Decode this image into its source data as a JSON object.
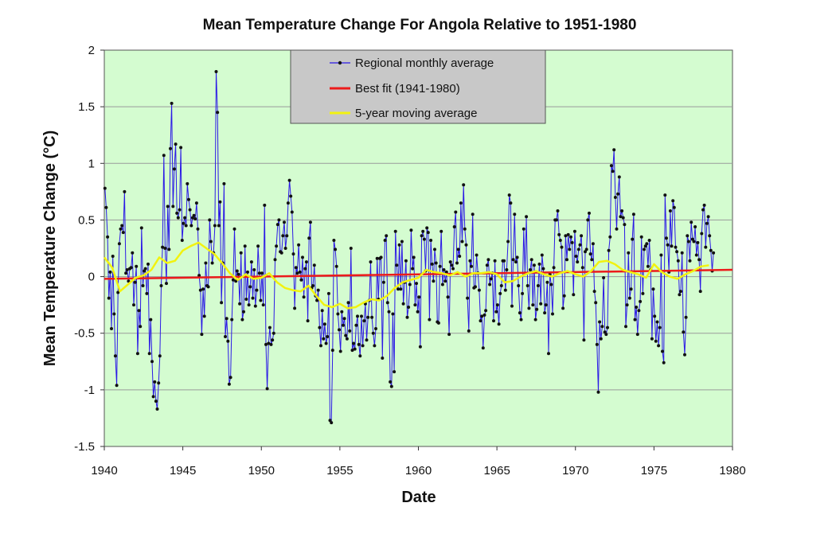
{
  "chart_data": {
    "type": "line",
    "title": "Mean Temperature Change For Angola Relative to 1951-1980",
    "xlabel": "Date",
    "ylabel": "Mean  Temperature  Change  (°C)",
    "xlim": [
      1940,
      1980
    ],
    "ylim": [
      -1.5,
      2
    ],
    "xticks": [
      1940,
      1945,
      1950,
      1955,
      1960,
      1965,
      1970,
      1975,
      1980
    ],
    "yticks": [
      -1.5,
      -1,
      -0.5,
      0,
      0.5,
      1,
      1.5,
      2
    ],
    "ytick_labels": [
      "-1.5",
      "-1",
      "-0.5",
      "0",
      "0.5",
      "1",
      "1.5",
      "2"
    ],
    "grid": "horizontal",
    "legend_position": "top-center",
    "colors": {
      "plot_background": "#d4fcd0",
      "monthly": "#2b19e6",
      "fit": "#ec1b1b",
      "moving_average": "#f2f20f"
    },
    "series": [
      {
        "name": "Regional monthly average",
        "style": "line-markers",
        "y_start_year": 1940.04,
        "y_step_months": 1,
        "y": [
          0.78,
          0.61,
          0.35,
          -0.19,
          0.04,
          -0.46,
          0.18,
          -0.33,
          -0.7,
          -0.96,
          -0.14,
          0.29,
          0.42,
          0.45,
          0.39,
          0.75,
          0.03,
          0.06,
          -0.04,
          0.07,
          0.08,
          0.21,
          -0.25,
          -0.05,
          0.09,
          -0.68,
          -0.3,
          -0.44,
          0.43,
          -0.08,
          0.05,
          0.07,
          -0.15,
          0.11,
          -0.68,
          -0.38,
          -0.75,
          -1.06,
          -0.93,
          -1.1,
          -1.17,
          -0.94,
          -0.7,
          -0.08,
          0.26,
          1.07,
          0.25,
          -0.06,
          0.62,
          0.24,
          1.13,
          1.53,
          0.62,
          0.95,
          1.17,
          0.56,
          0.52,
          0.59,
          1.14,
          0.32,
          0.47,
          0.52,
          0.45,
          0.82,
          0.68,
          0.59,
          0.45,
          0.52,
          0.54,
          0.51,
          0.65,
          0.42,
          0.01,
          -0.12,
          -0.51,
          -0.11,
          -0.35,
          0.12,
          -0.08,
          -0.09,
          0.5,
          0.31,
          0.12,
          0.21,
          0.45,
          1.81,
          1.45,
          0.45,
          0.66,
          -0.23,
          0.12,
          0.82,
          -0.53,
          -0.37,
          -0.57,
          -0.95,
          -0.89,
          -0.38,
          -0.03,
          0.42,
          -0.04,
          0.05,
          0.02,
          -0.24,
          0.21,
          -0.38,
          -0.31,
          0.27,
          -0.2,
          0.04,
          -0.25,
          -0.09,
          0.13,
          -0.19,
          0.06,
          -0.26,
          -0.12,
          0.27,
          0.03,
          -0.21,
          0.03,
          -0.25,
          0.63,
          -0.6,
          -0.99,
          -0.59,
          -0.45,
          -0.6,
          -0.56,
          -0.5,
          0.15,
          0.27,
          0.46,
          0.5,
          0.22,
          0.21,
          0.36,
          0.48,
          0.25,
          0.36,
          0.65,
          0.85,
          0.71,
          0.57,
          0.2,
          -0.28,
          0.08,
          0.03,
          0.28,
          0.04,
          -0.03,
          0.17,
          -0.18,
          0.07,
          0.13,
          -0.39,
          0.34,
          0.48,
          -0.1,
          -0.08,
          0.1,
          -0.17,
          -0.21,
          -0.12,
          -0.45,
          -0.61,
          -0.3,
          -0.55,
          -0.42,
          -0.59,
          -0.53,
          -0.15,
          -1.27,
          -1.29,
          -0.65,
          0.32,
          0.24,
          0.09,
          -0.33,
          -0.47,
          -0.66,
          -0.31,
          -0.43,
          -0.37,
          -0.52,
          -0.55,
          -0.23,
          -0.48,
          0.25,
          -0.65,
          -0.59,
          -0.64,
          -0.43,
          -0.35,
          -0.6,
          -0.7,
          -0.35,
          -0.61,
          -0.39,
          -0.24,
          -0.56,
          -0.36,
          -0.21,
          0.13,
          -0.36,
          -0.5,
          -0.61,
          -0.46,
          0.16,
          -0.2,
          0.16,
          0.17,
          -0.72,
          -0.05,
          0.32,
          0.36,
          -0.23,
          -0.31,
          -0.93,
          -0.97,
          -0.33,
          -0.84,
          0.4,
          0.1,
          -0.11,
          0.28,
          -0.11,
          0.31,
          -0.24,
          -0.05,
          0.14,
          -0.36,
          -0.27,
          -0.07,
          0.41,
          0.07,
          0.17,
          -0.25,
          -0.06,
          -0.31,
          -0.18,
          -0.62,
          0.36,
          0.4,
          0.33,
          0.05,
          0.43,
          0.39,
          -0.38,
          0.32,
          0.11,
          -0.04,
          0.24,
          0.12,
          -0.4,
          -0.41,
          0.09,
          0.4,
          -0.07,
          0.06,
          -0.04,
          0.04,
          -0.18,
          -0.51,
          0.13,
          0.1,
          0.07,
          0.44,
          0.57,
          0.12,
          0.24,
          0.18,
          0.65,
          0.31,
          0.81,
          0.42,
          0.28,
          -0.19,
          -0.48,
          0.14,
          0.09,
          0.55,
          -0.1,
          -0.09,
          0.19,
          0.03,
          -0.12,
          -0.39,
          -0.35,
          -0.63,
          -0.34,
          -0.3,
          0.1,
          0.15,
          -0.07,
          -0.02,
          0.03,
          -0.39,
          0.14,
          -0.31,
          -0.25,
          -0.42,
          -0.15,
          -0.08,
          0.14,
          0.14,
          -0.12,
          0.06,
          0.31,
          0.72,
          0.65,
          -0.26,
          0.15,
          0.55,
          0.13,
          0.17,
          -0.08,
          -0.32,
          -0.38,
          -0.15,
          0.42,
          0.03,
          0.53,
          -0.08,
          -0.28,
          0.06,
          0.15,
          -0.25,
          0.1,
          -0.38,
          -0.29,
          -0.08,
          0.11,
          -0.24,
          0.19,
          0.07,
          -0.32,
          -0.25,
          -0.05,
          -0.68,
          0.02,
          -0.07,
          -0.33,
          0.08,
          0.5,
          0.5,
          0.58,
          0.37,
          0.32,
          0.26,
          -0.28,
          -0.17,
          0.36,
          0.15,
          0.37,
          0.24,
          0.35,
          0.3,
          -0.16,
          0.4,
          0.18,
          0.13,
          0.24,
          0.28,
          0.36,
          0.08,
          -0.56,
          0.22,
          0.24,
          0.5,
          0.56,
          0.2,
          0.15,
          0.29,
          -0.13,
          -0.23,
          -0.6,
          -1.02,
          -0.4,
          -0.55,
          -0.44,
          -0.01,
          -0.49,
          -0.51,
          -0.45,
          0.23,
          0.35,
          0.98,
          0.93,
          1.12,
          0.7,
          0.42,
          0.73,
          0.88,
          0.53,
          0.58,
          0.52,
          0.46,
          -0.44,
          -0.25,
          0.21,
          -0.19,
          -0.11,
          0.33,
          0.55,
          -0.38,
          -0.27,
          -0.51,
          -0.3,
          -0.22,
          0.35,
          -0.15,
          0.24,
          0.27,
          0.29,
          0.09,
          0.32,
          0.06,
          -0.55,
          -0.11,
          -0.35,
          -0.57,
          -0.4,
          -0.61,
          -0.45,
          0.19,
          -0.66,
          -0.76,
          0.72,
          0.34,
          0.28,
          0.04,
          0.58,
          0.27,
          0.67,
          0.61,
          0.26,
          0.22,
          0.14,
          -0.16,
          -0.13,
          0.21,
          -0.49,
          -0.69,
          -0.36,
          0.36,
          0.31,
          0.14,
          0.48,
          0.33,
          0.31,
          0.44,
          0.19,
          0.3,
          0.15,
          -0.13,
          0.38,
          0.59,
          0.63,
          0.26,
          0.47,
          0.53,
          0.36,
          0.23,
          0.05,
          0.21
        ]
      },
      {
        "name": "Best fit (1941-1980)",
        "style": "line",
        "x": [
          1940,
          1980
        ],
        "y": [
          -0.02,
          0.06
        ]
      },
      {
        "name": "5-year moving average",
        "style": "line",
        "x": [
          1940,
          1940.5,
          1941,
          1941.5,
          1942,
          1942.5,
          1943,
          1943.5,
          1944,
          1944.5,
          1945,
          1945.5,
          1946,
          1946.5,
          1947,
          1947.5,
          1948,
          1948.5,
          1949,
          1949.5,
          1950,
          1950.5,
          1951,
          1951.5,
          1952,
          1952.5,
          1953,
          1953.5,
          1954,
          1954.5,
          1955,
          1955.5,
          1956,
          1956.5,
          1957,
          1957.5,
          1958,
          1958.5,
          1959,
          1959.5,
          1960,
          1960.5,
          1961,
          1961.5,
          1962,
          1962.5,
          1963,
          1963.5,
          1964,
          1964.5,
          1965,
          1965.5,
          1966,
          1966.5,
          1967,
          1967.5,
          1968,
          1968.5,
          1969,
          1969.5,
          1970,
          1970.5,
          1971,
          1971.5,
          1972,
          1972.5,
          1973,
          1973.5,
          1974,
          1974.5,
          1975,
          1975.5,
          1976,
          1976.5,
          1977,
          1977.5,
          1978,
          1978.5
        ],
        "y": [
          0.17,
          0.08,
          -0.13,
          -0.07,
          -0.01,
          0.01,
          0.06,
          0.17,
          0.12,
          0.14,
          0.23,
          0.27,
          0.3,
          0.25,
          0.2,
          0.12,
          0.03,
          -0.03,
          0.02,
          -0.02,
          -0.01,
          0.03,
          -0.05,
          -0.1,
          -0.12,
          -0.13,
          -0.08,
          -0.17,
          -0.25,
          -0.27,
          -0.24,
          -0.28,
          -0.27,
          -0.23,
          -0.2,
          -0.21,
          -0.17,
          -0.1,
          -0.05,
          -0.03,
          -0.01,
          0.06,
          0.04,
          0.03,
          0.01,
          0.04,
          0.0,
          0.03,
          0.03,
          0.04,
          0.02,
          -0.05,
          -0.04,
          0.0,
          0.03,
          0.05,
          0.02,
          0.0,
          0.03,
          0.05,
          0.02,
          0.0,
          0.05,
          0.13,
          0.14,
          0.11,
          0.06,
          0.04,
          0.02,
          -0.01,
          0.11,
          0.04,
          0.0,
          -0.02,
          0.02,
          0.05,
          0.09,
          0.1
        ]
      }
    ]
  }
}
